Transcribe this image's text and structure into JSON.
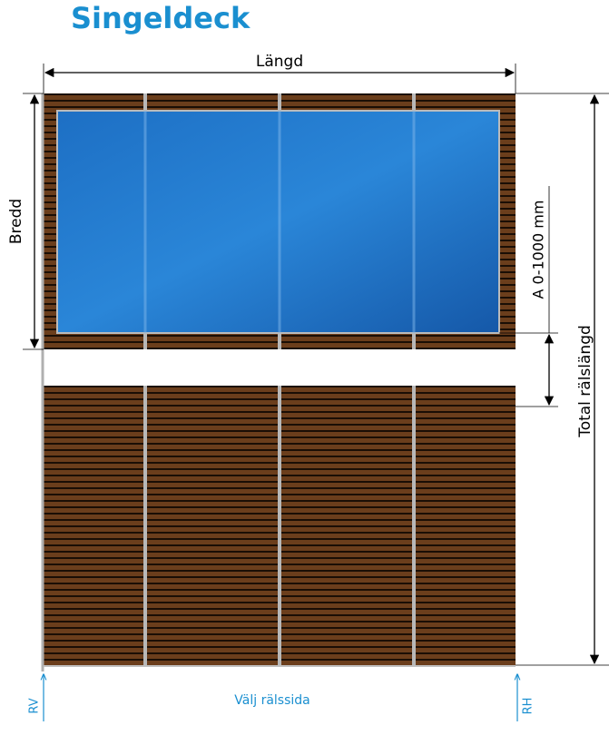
{
  "header": {
    "title": "Singeldeck"
  },
  "dimensions": {
    "length": "Längd",
    "width": "Bredd",
    "gap": "A 0-1000 mm",
    "total": "Total rälslängd"
  },
  "footer": {
    "left": "RV",
    "center": "Välj rälssida",
    "right": "RH"
  }
}
